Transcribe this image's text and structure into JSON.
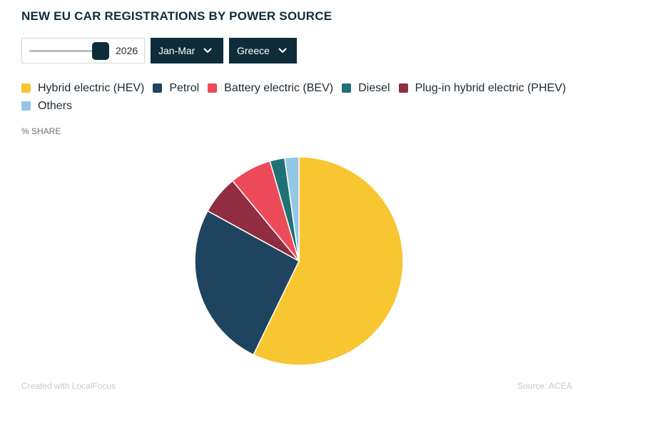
{
  "header": {
    "title": "NEW EU CAR REGISTRATIONS BY POWER SOURCE"
  },
  "controls": {
    "year_slider_value": "2026",
    "period_dropdown": "Jan-Mar",
    "country_dropdown": "Greece"
  },
  "chart_data": {
    "type": "pie",
    "unit_label": "% SHARE",
    "categories": [
      "Hybrid electric (HEV)",
      "Petrol",
      "Battery electric (BEV)",
      "Diesel",
      "Plug-in hybrid electric (PHEV)",
      "Others"
    ],
    "values": [
      57.2,
      25.8,
      6.5,
      2.3,
      6.0,
      2.2
    ],
    "colors": [
      "#f8c630",
      "#1e4460",
      "#ee4b5a",
      "#1e7274",
      "#902d40",
      "#94c7e6"
    ],
    "slice_order": [
      0,
      1,
      4,
      2,
      3,
      5
    ],
    "legend_placement": "top"
  },
  "footer": {
    "credit": "Created with LocalFocus",
    "source": "Source:  ACEA"
  }
}
